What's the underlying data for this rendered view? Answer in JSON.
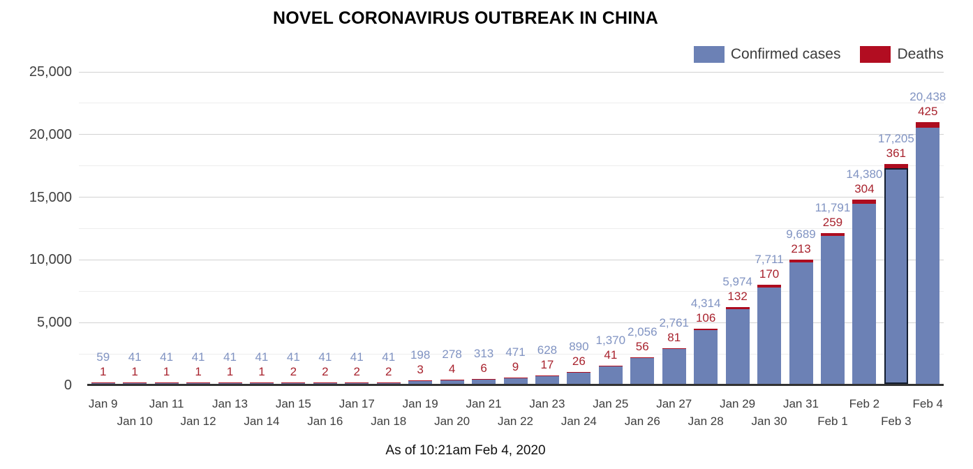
{
  "title": "NOVEL CORONAVIRUS OUTBREAK IN CHINA",
  "footer": "As of 10:21am Feb 4, 2020",
  "legend": [
    {
      "label": "Confirmed cases",
      "color": "#6c81b5"
    },
    {
      "label": "Deaths",
      "color": "#b20d21"
    }
  ],
  "colors": {
    "confirmed_bar": "#6c81b5",
    "deaths_bar": "#ad0c1f",
    "confirmed_label": "#8093c2",
    "deaths_label": "#a8222d",
    "axis_line": "#333333",
    "tick_text": "#404040",
    "grid_major": "#d2d2d2",
    "grid_minor": "#ededed",
    "highlight_border": "#141e30"
  },
  "chart_data": {
    "type": "bar",
    "stacked": true,
    "title": "NOVEL CORONAVIRUS OUTBREAK IN CHINA",
    "xlabel": "",
    "ylabel": "",
    "ylim": [
      0,
      25000
    ],
    "y_tick_interval": 5000,
    "y_minor_interval": 2500,
    "y_ticks": [
      "0",
      "5,000",
      "10,000",
      "15,000",
      "20,000",
      "25,000"
    ],
    "grid": "horizontal",
    "legend_position": "top-right",
    "annotations": "confirmed count (blue) above deaths count (red) over each bar",
    "highlighted_category": "Feb 3",
    "categories": [
      "Jan 9",
      "Jan 10",
      "Jan 11",
      "Jan 12",
      "Jan 13",
      "Jan 14",
      "Jan 15",
      "Jan 16",
      "Jan 17",
      "Jan 18",
      "Jan 19",
      "Jan 20",
      "Jan 21",
      "Jan 22",
      "Jan 23",
      "Jan 24",
      "Jan 25",
      "Jan 26",
      "Jan 27",
      "Jan 28",
      "Jan 29",
      "Jan 30",
      "Jan 31",
      "Feb 1",
      "Feb 2",
      "Feb 3",
      "Feb 4"
    ],
    "series": [
      {
        "name": "Confirmed cases",
        "color": "#6c81b5",
        "values": [
          59,
          41,
          41,
          41,
          41,
          41,
          41,
          41,
          41,
          41,
          198,
          278,
          313,
          471,
          628,
          890,
          1370,
          2056,
          2761,
          4314,
          5974,
          7711,
          9689,
          11791,
          14380,
          17205,
          20438
        ]
      },
      {
        "name": "Deaths",
        "color": "#ad0c1f",
        "values": [
          1,
          1,
          1,
          1,
          1,
          1,
          2,
          2,
          2,
          2,
          3,
          4,
          6,
          9,
          17,
          26,
          41,
          56,
          81,
          106,
          132,
          170,
          213,
          259,
          304,
          361,
          425
        ]
      }
    ]
  }
}
